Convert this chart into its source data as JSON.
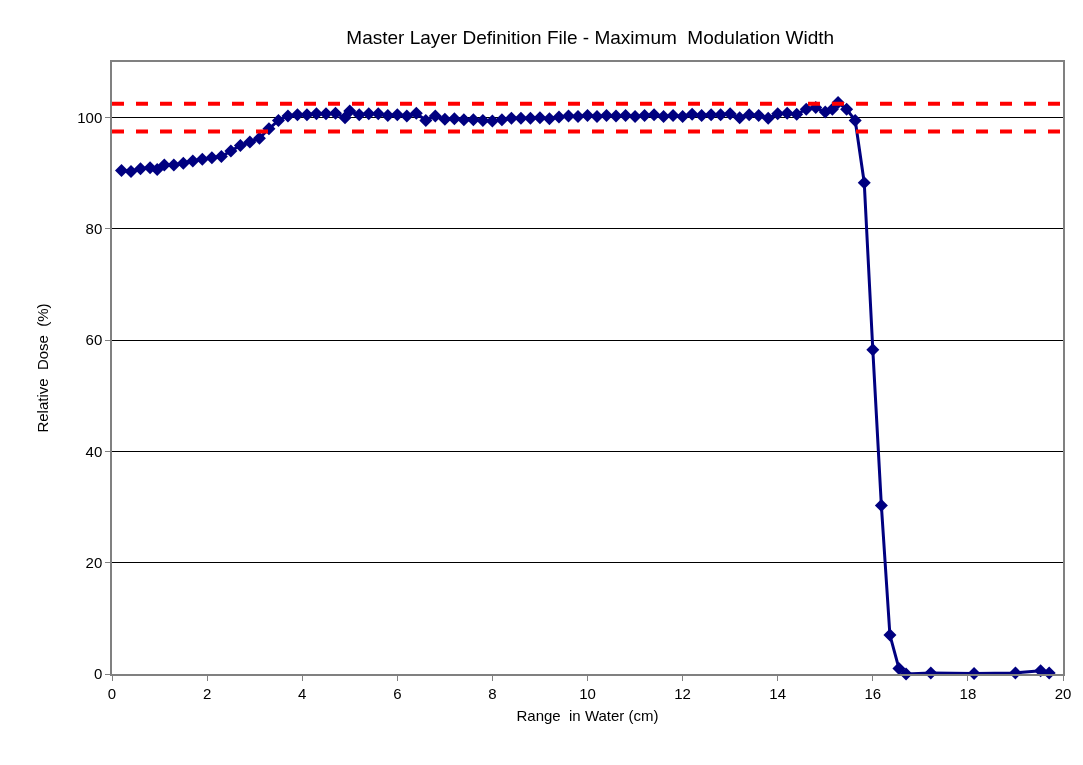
{
  "chart_data": {
    "type": "line",
    "title": "Master Layer Definition File - Maximum  Modulation Width",
    "xlabel": "Range  in Water (cm)",
    "ylabel": "Relative  Dose  (%)",
    "xlim": [
      0,
      20
    ],
    "xticks": [
      0,
      2,
      4,
      6,
      8,
      10,
      12,
      14,
      16,
      18,
      20
    ],
    "ylim": [
      0,
      110
    ],
    "yticks": [
      0,
      20,
      40,
      60,
      80,
      100
    ],
    "grid": "y",
    "marker": "diamond",
    "line_style": "solid",
    "series": [
      {
        "color": "#000080",
        "x": [
          0.2,
          0.4,
          0.6,
          0.8,
          0.95,
          1.1,
          1.3,
          1.5,
          1.7,
          1.9,
          2.1,
          2.3,
          2.5,
          2.7,
          2.9,
          3.1,
          3.3,
          3.5,
          3.7,
          3.9,
          4.1,
          4.3,
          4.5,
          4.7,
          4.9,
          5.0,
          5.2,
          5.4,
          5.6,
          5.8,
          6.0,
          6.2,
          6.4,
          6.6,
          6.8,
          7.0,
          7.2,
          7.4,
          7.6,
          7.8,
          8.0,
          8.2,
          8.4,
          8.6,
          8.8,
          9.0,
          9.2,
          9.4,
          9.6,
          9.8,
          10.0,
          10.2,
          10.4,
          10.6,
          10.8,
          11.0,
          11.2,
          11.4,
          11.6,
          11.8,
          12.0,
          12.2,
          12.4,
          12.6,
          12.8,
          13.0,
          13.2,
          13.4,
          13.6,
          13.8,
          14.0,
          14.2,
          14.4,
          14.6,
          14.8,
          15.0,
          15.15,
          15.27,
          15.45,
          15.63,
          15.82,
          16.0,
          16.18,
          16.36,
          16.55,
          16.7,
          17.22,
          18.13,
          19.0,
          19.53,
          19.71
        ],
        "values": [
          90.5,
          90.3,
          90.8,
          91,
          90.7,
          91.5,
          91.5,
          91.8,
          92.2,
          92.5,
          92.8,
          93,
          94,
          95,
          95.6,
          96.3,
          98,
          99.5,
          100.3,
          100.5,
          100.5,
          100.7,
          100.7,
          100.8,
          100,
          101.2,
          100.5,
          100.7,
          100.7,
          100.4,
          100.5,
          100.3,
          100.8,
          99.5,
          100.3,
          99.7,
          99.8,
          99.6,
          99.6,
          99.5,
          99.4,
          99.6,
          99.9,
          99.9,
          99.9,
          100,
          99.8,
          100.1,
          100.3,
          100.2,
          100.4,
          100.2,
          100.4,
          100.3,
          100.4,
          100.2,
          100.4,
          100.5,
          100.2,
          100.4,
          100.2,
          100.6,
          100.4,
          100.5,
          100.5,
          100.7,
          100,
          100.5,
          100.4,
          99.9,
          100.7,
          100.8,
          100.6,
          101.5,
          101.8,
          101,
          101.5,
          102.7,
          101.5,
          99.5,
          88.3,
          58.3,
          30.3,
          7,
          1,
          0,
          0.2,
          0.1,
          0.2,
          0.6,
          0.2
        ]
      }
    ],
    "ref_lines": [
      {
        "axis": "y",
        "value": 102.5,
        "color": "#ff0000",
        "line_style": "dashed"
      },
      {
        "axis": "y",
        "value": 97.5,
        "color": "#ff0000",
        "line_style": "dashed"
      }
    ]
  }
}
